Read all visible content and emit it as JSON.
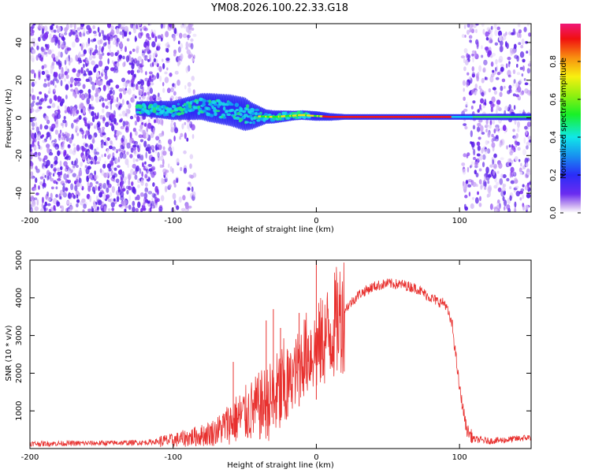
{
  "title": "YM08.2026.100.22.33.G18",
  "colors": {
    "snr_line": "#e8312f",
    "frame": "#000000"
  },
  "chart_data": [
    {
      "type": "heatmap",
      "title": "YM08.2026.100.22.33.G18",
      "xlabel": "Height of straight line (km)",
      "ylabel": "Frequency (Hz)",
      "xlim": [
        -200,
        150
      ],
      "ylim": [
        -50,
        50
      ],
      "x_ticks": [
        -200,
        -100,
        0,
        100
      ],
      "x_tick_labels": [
        "-200",
        "-100",
        "0",
        "100"
      ],
      "y_ticks": [
        -40,
        -20,
        0,
        20,
        40
      ],
      "y_tick_labels": [
        "-40",
        "-20",
        "0",
        "20",
        "40"
      ],
      "colorbar": {
        "label": "Normalized spectral amplitude",
        "range": [
          0,
          1
        ],
        "ticks": [
          0.0,
          0.2,
          0.4,
          0.6,
          0.8
        ],
        "tick_labels": [
          "0.0",
          "0.2",
          "0.4",
          "0.6",
          "0.8"
        ]
      },
      "features": {
        "noise_region_left": [
          -200,
          -110
        ],
        "sparse_noise_region": [
          -110,
          -85
        ],
        "noise_region_right": [
          102,
          150
        ],
        "tone_start_km": -125,
        "tone_center_hz": [
          [
            -125,
            5
          ],
          [
            -100,
            4
          ],
          [
            -80,
            6
          ],
          [
            -60,
            4
          ],
          [
            -45,
            1
          ],
          [
            -30,
            0.5
          ],
          [
            -10,
            1.5
          ],
          [
            0,
            1
          ],
          [
            10,
            0.5
          ],
          [
            100,
            0.5
          ],
          [
            150,
            0.5
          ]
        ],
        "tone_spread_hz": [
          [
            -125,
            3
          ],
          [
            -100,
            4
          ],
          [
            -75,
            6
          ],
          [
            -50,
            7
          ],
          [
            -35,
            3
          ],
          [
            -15,
            2
          ],
          [
            0,
            2
          ],
          [
            20,
            1.2
          ],
          [
            100,
            1.2
          ],
          [
            150,
            1.5
          ]
        ]
      }
    },
    {
      "type": "line",
      "xlabel": "Height of straight line (km)",
      "ylabel": "SNR (10 * v/v)",
      "xlim": [
        -200,
        150
      ],
      "ylim": [
        0,
        5000
      ],
      "x_ticks": [
        -200,
        -100,
        0,
        100
      ],
      "x_tick_labels": [
        "-200",
        "-100",
        "0",
        "100"
      ],
      "y_ticks": [
        1000,
        2000,
        3000,
        4000,
        5000
      ],
      "y_tick_labels": [
        "1000",
        "2000",
        "3000",
        "4000",
        "5000"
      ],
      "series": [
        {
          "name": "SNR",
          "envelope": [
            [
              -200,
              130
            ],
            [
              -160,
              140
            ],
            [
              -120,
              160
            ],
            [
              -100,
              220
            ],
            [
              -80,
              350
            ],
            [
              -70,
              450
            ],
            [
              -60,
              700
            ],
            [
              -50,
              900
            ],
            [
              -40,
              1100
            ],
            [
              -30,
              1300
            ],
            [
              -20,
              1700
            ],
            [
              -15,
              2000
            ],
            [
              -10,
              2400
            ],
            [
              -5,
              2600
            ],
            [
              0,
              2600
            ],
            [
              5,
              2900
            ],
            [
              10,
              3100
            ],
            [
              20,
              3700
            ],
            [
              30,
              4100
            ],
            [
              40,
              4300
            ],
            [
              50,
              4380
            ],
            [
              60,
              4350
            ],
            [
              70,
              4250
            ],
            [
              80,
              4000
            ],
            [
              85,
              3900
            ],
            [
              90,
              3850
            ],
            [
              95,
              3250
            ],
            [
              100,
              1600
            ],
            [
              105,
              500
            ],
            [
              110,
              250
            ],
            [
              120,
              200
            ],
            [
              130,
              220
            ],
            [
              140,
              260
            ],
            [
              150,
              300
            ]
          ],
          "spikes": [
            [
              -35,
              3400
            ],
            [
              -30,
              3700
            ],
            [
              -58,
              2300
            ],
            [
              -25,
              3200
            ],
            [
              0,
              5100
            ],
            [
              -20,
              2600
            ],
            [
              -12,
              3600
            ]
          ]
        }
      ]
    }
  ]
}
